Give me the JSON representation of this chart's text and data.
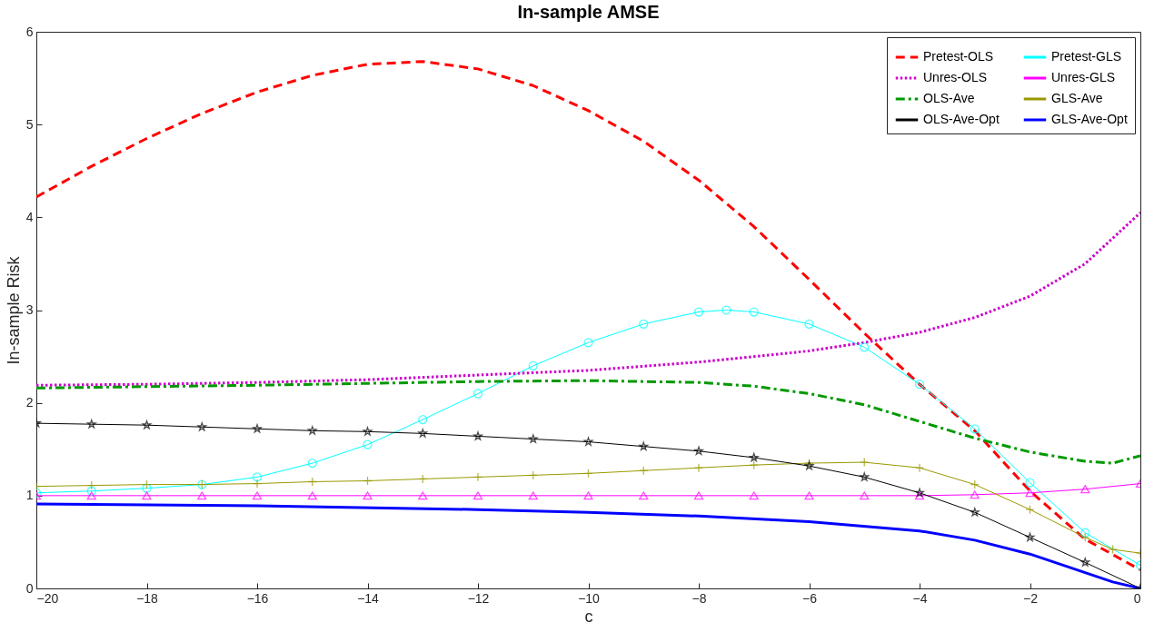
{
  "chart_data": {
    "type": "line",
    "title": "In-sample AMSE",
    "xlabel": "c",
    "ylabel": "In-sample Risk",
    "xlim": [
      -20,
      0
    ],
    "ylim": [
      0,
      6
    ],
    "xticks": [
      -20,
      -18,
      -16,
      -14,
      -12,
      -10,
      -8,
      -6,
      -4,
      -2,
      0
    ],
    "yticks": [
      0,
      1,
      2,
      3,
      4,
      5,
      6
    ],
    "grid": false,
    "legend": "top right",
    "series": [
      {
        "name": "Pretest-OLS",
        "color": "#ff0000",
        "line_style": "dashed",
        "marker": "none",
        "x": [
          -20,
          -19,
          -18,
          -17,
          -16,
          -15,
          -14,
          -13,
          -12,
          -11,
          -10,
          -9,
          -8,
          -7,
          -6,
          -5,
          -4,
          -3,
          -2,
          -1,
          0
        ],
        "values": [
          4.22,
          4.55,
          4.85,
          5.12,
          5.35,
          5.53,
          5.65,
          5.68,
          5.6,
          5.42,
          5.15,
          4.82,
          4.4,
          3.9,
          3.33,
          2.75,
          2.2,
          1.7,
          1.05,
          0.53,
          0.2
        ]
      },
      {
        "name": "Pretest-GLS",
        "color": "#00ffff",
        "line_style": "solid",
        "marker": "circle",
        "x": [
          -20,
          -19,
          -18,
          -17,
          -16,
          -15,
          -14,
          -13,
          -12,
          -11,
          -10,
          -9,
          -8,
          -7.5,
          -7,
          -6,
          -5,
          -4,
          -3,
          -2,
          -1,
          0
        ],
        "values": [
          1.03,
          1.05,
          1.08,
          1.12,
          1.2,
          1.35,
          1.55,
          1.82,
          2.1,
          2.4,
          2.65,
          2.85,
          2.98,
          3.0,
          2.98,
          2.85,
          2.6,
          2.2,
          1.72,
          1.14,
          0.6,
          0.25
        ]
      },
      {
        "name": "Unres-OLS",
        "color": "#cc00cc",
        "line_style": "dotted",
        "marker": "none",
        "x": [
          -20,
          -18,
          -16,
          -14,
          -12,
          -10,
          -8,
          -6,
          -5,
          -4,
          -3,
          -2,
          -1,
          0
        ],
        "values": [
          2.19,
          2.2,
          2.22,
          2.25,
          2.3,
          2.35,
          2.44,
          2.56,
          2.65,
          2.76,
          2.92,
          3.15,
          3.5,
          4.05
        ]
      },
      {
        "name": "Unres-GLS",
        "color": "#ff00ff",
        "line_style": "solid",
        "marker": "triangle",
        "x": [
          -20,
          -19,
          -18,
          -17,
          -16,
          -15,
          -14,
          -13,
          -12,
          -11,
          -10,
          -9,
          -8,
          -7,
          -6,
          -5,
          -4,
          -3,
          -2,
          -1,
          0
        ],
        "values": [
          1.0,
          1.0,
          1.0,
          1.0,
          1.0,
          1.0,
          1.0,
          1.0,
          1.0,
          1.0,
          1.0,
          1.0,
          1.0,
          1.0,
          1.0,
          1.0,
          1.0,
          1.01,
          1.03,
          1.07,
          1.13
        ]
      },
      {
        "name": "OLS-Ave",
        "color": "#009900",
        "line_style": "dashdot",
        "marker": "none",
        "x": [
          -20,
          -16,
          -12,
          -10,
          -8,
          -7,
          -6,
          -5,
          -4,
          -3,
          -2,
          -1,
          -0.5,
          0
        ],
        "values": [
          2.16,
          2.19,
          2.23,
          2.24,
          2.22,
          2.18,
          2.1,
          1.98,
          1.8,
          1.62,
          1.47,
          1.37,
          1.35,
          1.43
        ]
      },
      {
        "name": "GLS-Ave",
        "color": "#999900",
        "line_style": "solid",
        "marker": "cross",
        "x": [
          -20,
          -19,
          -18,
          -17,
          -16,
          -15,
          -14,
          -13,
          -12,
          -11,
          -10,
          -9,
          -8,
          -7,
          -6,
          -5,
          -4,
          -3,
          -2,
          -1,
          -0.5,
          0
        ],
        "values": [
          1.1,
          1.11,
          1.12,
          1.12,
          1.13,
          1.15,
          1.16,
          1.18,
          1.2,
          1.22,
          1.24,
          1.27,
          1.3,
          1.33,
          1.35,
          1.36,
          1.3,
          1.12,
          0.85,
          0.55,
          0.42,
          0.38
        ]
      },
      {
        "name": "OLS-Ave-Opt",
        "color": "#000000",
        "line_style": "solid",
        "marker": "star",
        "x": [
          -20,
          -19,
          -18,
          -17,
          -16,
          -15,
          -14,
          -13,
          -12,
          -11,
          -10,
          -9,
          -8,
          -7,
          -6,
          -5,
          -4,
          -3,
          -2,
          -1,
          0
        ],
        "values": [
          1.78,
          1.77,
          1.76,
          1.74,
          1.72,
          1.7,
          1.69,
          1.67,
          1.64,
          1.61,
          1.58,
          1.53,
          1.48,
          1.41,
          1.32,
          1.2,
          1.03,
          0.82,
          0.55,
          0.28,
          0.0
        ]
      },
      {
        "name": "GLS-Ave-Opt",
        "color": "#0000ff",
        "line_style": "solid",
        "marker": "none",
        "x": [
          -20,
          -16,
          -12,
          -10,
          -8,
          -6,
          -4,
          -3,
          -2,
          -1,
          -0.5,
          0
        ],
        "values": [
          0.91,
          0.89,
          0.85,
          0.82,
          0.78,
          0.72,
          0.62,
          0.52,
          0.37,
          0.17,
          0.07,
          0.0
        ]
      }
    ]
  }
}
